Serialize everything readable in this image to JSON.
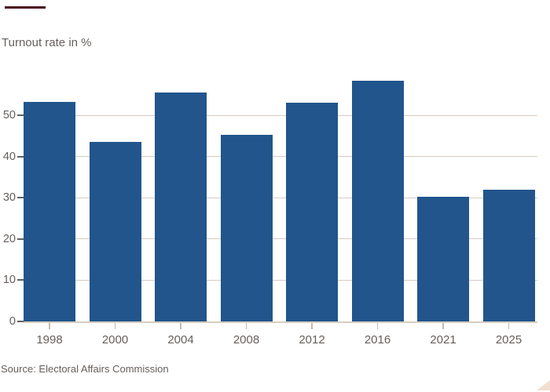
{
  "header": {
    "title": "Turnout rate in %"
  },
  "footer": {
    "source": "Source: Electoral Affairs Commission"
  },
  "chart_data": {
    "type": "bar",
    "title": "Turnout rate in %",
    "xlabel": "",
    "ylabel": "Turnout rate in %",
    "categories": [
      "1998",
      "2000",
      "2004",
      "2008",
      "2012",
      "2016",
      "2021",
      "2025"
    ],
    "values": [
      53.3,
      43.6,
      55.6,
      45.2,
      53.0,
      58.3,
      30.2,
      32.0
    ],
    "ylim": [
      0,
      60
    ],
    "yticks": [
      0,
      10,
      20,
      30,
      40,
      50
    ],
    "grid": true,
    "legend": false,
    "gridlines_behind_bars": true,
    "source": "Source: Electoral Affairs Commission"
  },
  "colors": {
    "background": "#FFFFFF",
    "bar": "#21558C",
    "text": "#66605C",
    "gridline": "#D6CCC0",
    "axis_baseline": "#D6CCC0",
    "x_tick": "#C4BBB0",
    "y_tick": "#66605C",
    "top_rule": "#4D0A1E",
    "logo_triangle": "#F2DFD0"
  }
}
